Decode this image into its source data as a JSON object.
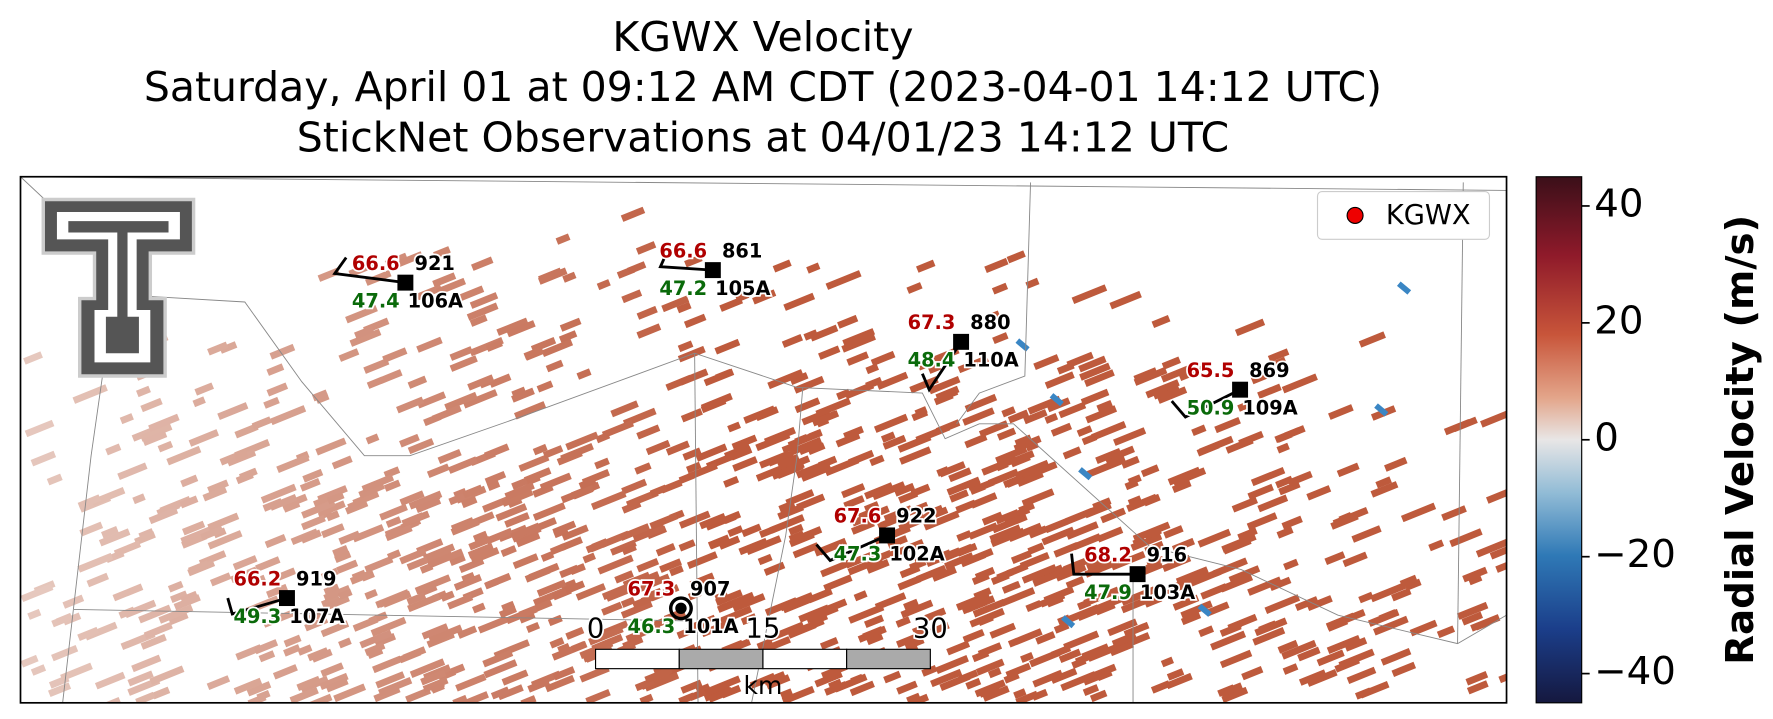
{
  "title": {
    "lines": [
      "KGWX Velocity",
      "Saturday, April 01 at 09:12 AM CDT (2023-04-01 14:12 UTC)",
      "StickNet Observations at 04/01/23 14:12 UTC"
    ]
  },
  "colorbar": {
    "label": "Radial Velocity (m/s)",
    "lim": [
      -45,
      45
    ],
    "ticks": [
      {
        "value": 40,
        "label": "40"
      },
      {
        "value": 20,
        "label": "20"
      },
      {
        "value": 0,
        "label": "0"
      },
      {
        "value": -20,
        "label": "−20"
      },
      {
        "value": -40,
        "label": "−40"
      }
    ]
  },
  "legend": {
    "label": "KGWX"
  },
  "stations": [
    {
      "id": "106A",
      "temperature": 66.6,
      "dewpoint": 47.4,
      "pressure": 921
    },
    {
      "id": "105A",
      "temperature": 66.6,
      "dewpoint": 47.2,
      "pressure": 861
    },
    {
      "id": "110A",
      "temperature": 67.3,
      "dewpoint": 48.4,
      "pressure": 880
    },
    {
      "id": "109A",
      "temperature": 65.5,
      "dewpoint": 50.9,
      "pressure": 869
    },
    {
      "id": "102A",
      "temperature": 67.6,
      "dewpoint": 47.3,
      "pressure": 922
    },
    {
      "id": "103A",
      "temperature": 68.2,
      "dewpoint": 47.9,
      "pressure": 916
    },
    {
      "id": "107A",
      "temperature": 66.2,
      "dewpoint": 49.3,
      "pressure": 919
    },
    {
      "id": "101A",
      "temperature": 67.3,
      "dewpoint": 46.3,
      "pressure": 907
    }
  ],
  "scale_bar": {
    "labels": [
      0,
      15,
      30
    ],
    "unit": "km"
  }
}
